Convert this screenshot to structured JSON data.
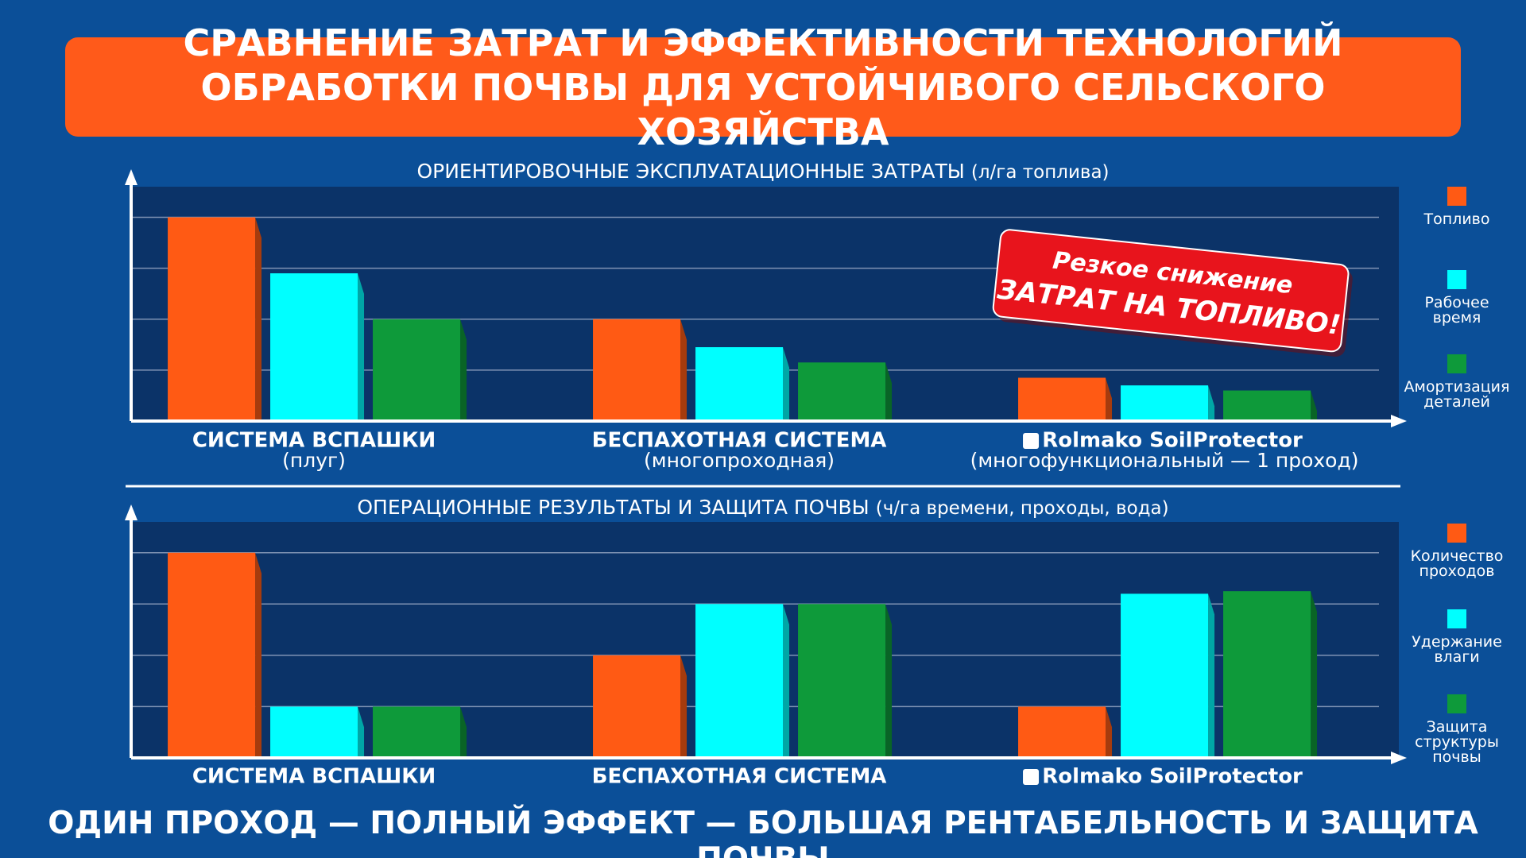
{
  "title": "СРАВНЕНИЕ ЗАТРАТ И ЭФФЕКТИВНОСТИ ТЕХНОЛОГИЙ ОБРАБОТКИ ПОЧВЫ ДЛЯ УСТОЙЧИВОГО СЕЛЬСКОГО ХОЗЯЙСТВА",
  "chart_data": [
    {
      "type": "bar",
      "title": "ОРИЕНТИРОВОЧНЫЕ ЭКСПЛУАТАЦИОННЫЕ ЗАТРАТЫ",
      "subtitle": "(л/га топлива)",
      "categories": [
        "СИСТЕМА ВСПАШКИ",
        "БЕСПАХОТНАЯ СИСТЕМА",
        "Rolmako SoilProtector"
      ],
      "category_notes": [
        "(плуг)",
        "(многопроходная)",
        "(многофункциональный — 1 проход)"
      ],
      "series": [
        {
          "name": "Топливо",
          "color": "#ff5a14",
          "values": [
            4,
            2,
            0.85
          ]
        },
        {
          "name": "Рабочее время",
          "color": "#00ffff",
          "values": [
            2.9,
            1.45,
            0.7
          ]
        },
        {
          "name": "Амортизация деталей",
          "color": "#0e9a3a",
          "values": [
            2,
            1.15,
            0.6
          ]
        }
      ],
      "ylim": [
        0,
        4.6
      ],
      "yticks": [
        1,
        2,
        3,
        4
      ],
      "grid": true,
      "annotation": [
        "Резкое снижение",
        "ЗАТРАТ НА ТОПЛИВО!"
      ]
    },
    {
      "type": "bar",
      "title": "ОПЕРАЦИОННЫЕ РЕЗУЛЬТАТЫ И ЗАЩИТА ПОЧВЫ",
      "subtitle": "(ч/га времени, проходы, вода)",
      "categories": [
        "СИСТЕМА ВСПАШКИ",
        "БЕСПАХОТНАЯ СИСТЕМА",
        "Rolmako SoilProtector"
      ],
      "series": [
        {
          "name": "Количество проходов",
          "color": "#ff5a14",
          "values": [
            4,
            2,
            1
          ]
        },
        {
          "name": "Удержание влаги",
          "color": "#00ffff",
          "values": [
            1,
            3,
            3.2
          ]
        },
        {
          "name": "Защита структуры почвы",
          "color": "#0e9a3a",
          "values": [
            1,
            3,
            3.25
          ]
        }
      ],
      "ylim": [
        0,
        4.6
      ],
      "yticks": [
        1,
        2,
        3,
        4
      ],
      "grid": true
    }
  ],
  "footer": "ОДИН ПРОХОД — ПОЛНЫЙ ЭФФЕКТ — БОЛЬШАЯ РЕНТАБЕЛЬНОСТЬ И ЗАЩИТА ПОЧВЫ"
}
